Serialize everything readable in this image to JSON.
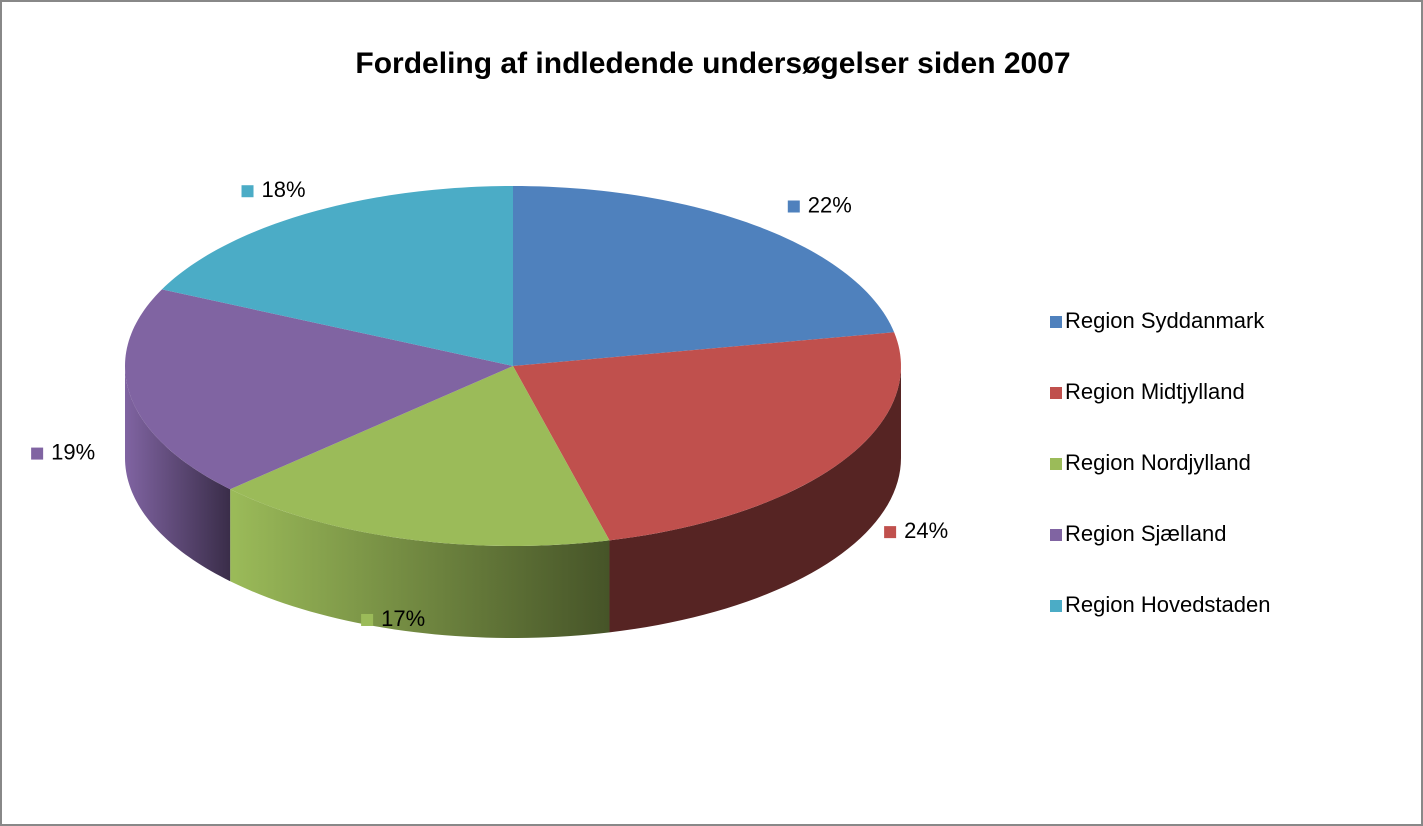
{
  "chart_data": {
    "type": "pie",
    "title": "Fordeling af indledende undersøgelser siden 2007",
    "categories": [
      "Region Syddanmark",
      "Region Midtjylland",
      "Region Nordjylland",
      "Region Sjælland",
      "Region Hovedstaden"
    ],
    "values": [
      22,
      24,
      17,
      19,
      18
    ],
    "value_labels": [
      "22%",
      "24%",
      "17%",
      "19%",
      "18%"
    ],
    "colors": [
      "#4f81bd",
      "#c0504d",
      "#9bbb59",
      "#8064a2",
      "#4bacc6"
    ],
    "legend": "right"
  }
}
